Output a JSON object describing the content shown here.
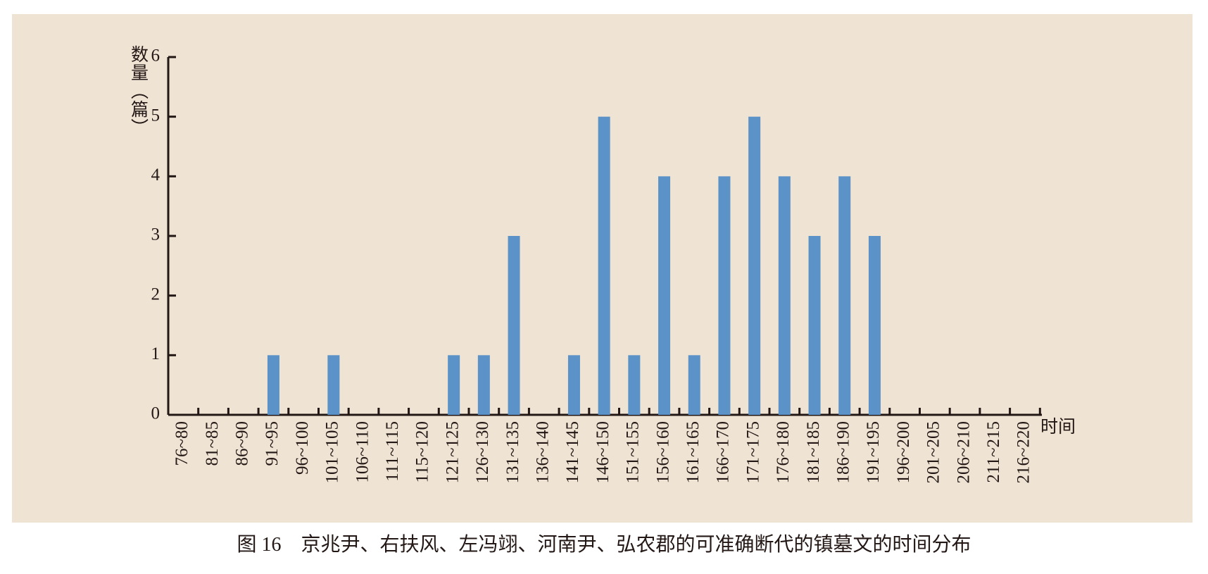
{
  "chart_data": {
    "type": "bar",
    "y_label": "数量（篇）",
    "x_label": "时间",
    "caption": "图 16　京兆尹、右扶风、左冯翊、河南尹、弘农郡的可准确断代的镇墓文的时间分布",
    "categories": [
      "76~80",
      "81~85",
      "86~90",
      "91~95",
      "96~100",
      "101~105",
      "106~110",
      "111~115",
      "115~120",
      "121~125",
      "126~130",
      "131~135",
      "136~140",
      "141~145",
      "146~150",
      "151~155",
      "156~160",
      "161~165",
      "166~170",
      "171~175",
      "176~180",
      "181~185",
      "186~190",
      "191~195",
      "196~200",
      "201~205",
      "206~210",
      "211~215",
      "216~220"
    ],
    "values": [
      0,
      0,
      0,
      1,
      0,
      1,
      0,
      0,
      0,
      1,
      1,
      3,
      0,
      1,
      5,
      1,
      4,
      1,
      4,
      5,
      4,
      3,
      4,
      3,
      0,
      0,
      0,
      0,
      0
    ],
    "color": "#5b93c9",
    "ylim": [
      0,
      6
    ],
    "yticks": [
      0,
      1,
      2,
      3,
      4,
      5,
      6
    ]
  }
}
